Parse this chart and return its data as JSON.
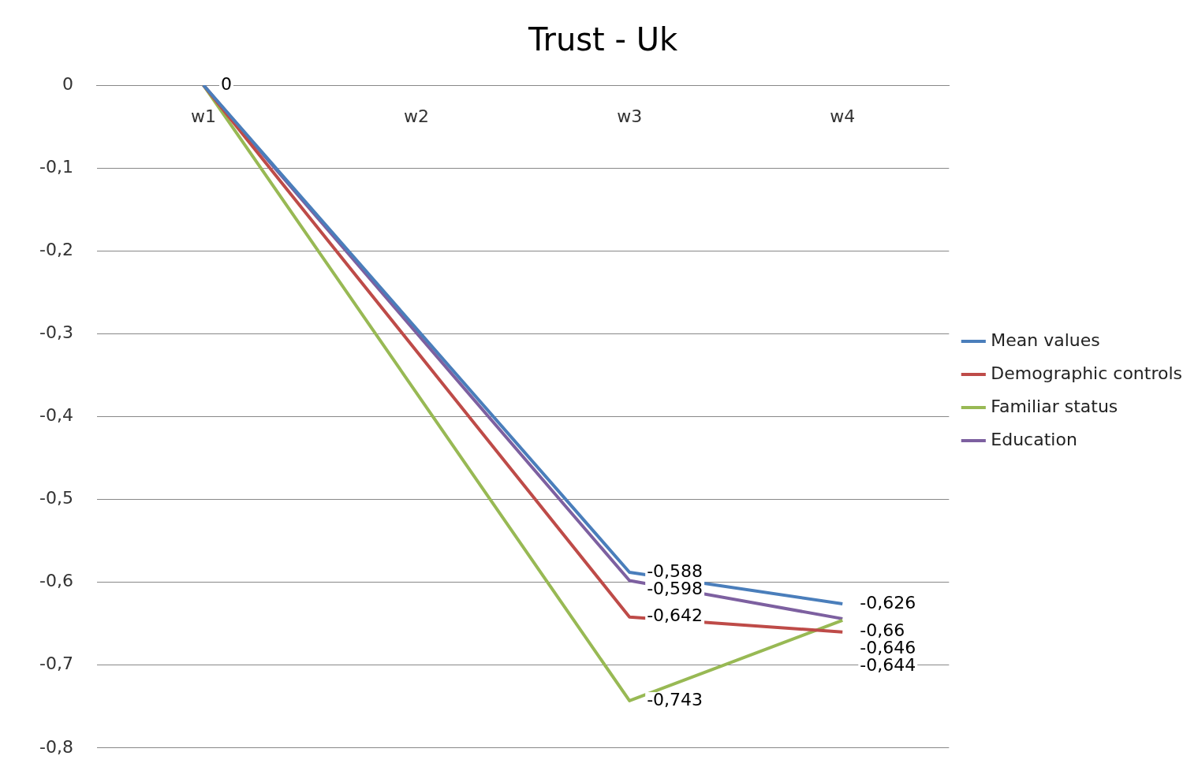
{
  "chart_data": {
    "type": "line",
    "title": "Trust - Uk",
    "categories": [
      "w1",
      "w2",
      "w3",
      "w4"
    ],
    "series": [
      {
        "name": "Mean values",
        "color": "#4a7ebb",
        "values": [
          0,
          null,
          -0.588,
          -0.626
        ],
        "value_labels": [
          null,
          null,
          "-0,588",
          "-0,626"
        ]
      },
      {
        "name": "Demographic controls",
        "color": "#be4b48",
        "values": [
          0,
          null,
          -0.642,
          -0.66
        ],
        "value_labels": [
          null,
          null,
          "-0,642",
          "-0,66"
        ]
      },
      {
        "name": "Familiar status",
        "color": "#98b954",
        "values": [
          0,
          null,
          -0.743,
          -0.646
        ],
        "value_labels": [
          null,
          null,
          "-0,743",
          "-0,646"
        ]
      },
      {
        "name": "Education",
        "color": "#7d60a0",
        "values": [
          0,
          null,
          -0.598,
          -0.644
        ],
        "value_labels": [
          "0",
          null,
          "-0,598",
          "-0,644"
        ]
      }
    ],
    "ylim": [
      -0.8,
      0
    ],
    "yticks": [
      0,
      {
        "value": -0.1,
        "label": "-0,1"
      },
      {
        "value": -0.2,
        "label": "-0,2"
      },
      {
        "value": -0.3,
        "label": "-0,3"
      },
      {
        "value": -0.4,
        "label": "-0,4"
      },
      {
        "value": -0.5,
        "label": "-0,5"
      },
      {
        "value": -0.6,
        "label": "-0,6"
      },
      {
        "value": -0.7,
        "label": "-0,7"
      },
      {
        "value": -0.8,
        "label": "-0,8"
      }
    ],
    "grid": "y",
    "legend": "right",
    "marker": "none",
    "line_style": "solid"
  }
}
